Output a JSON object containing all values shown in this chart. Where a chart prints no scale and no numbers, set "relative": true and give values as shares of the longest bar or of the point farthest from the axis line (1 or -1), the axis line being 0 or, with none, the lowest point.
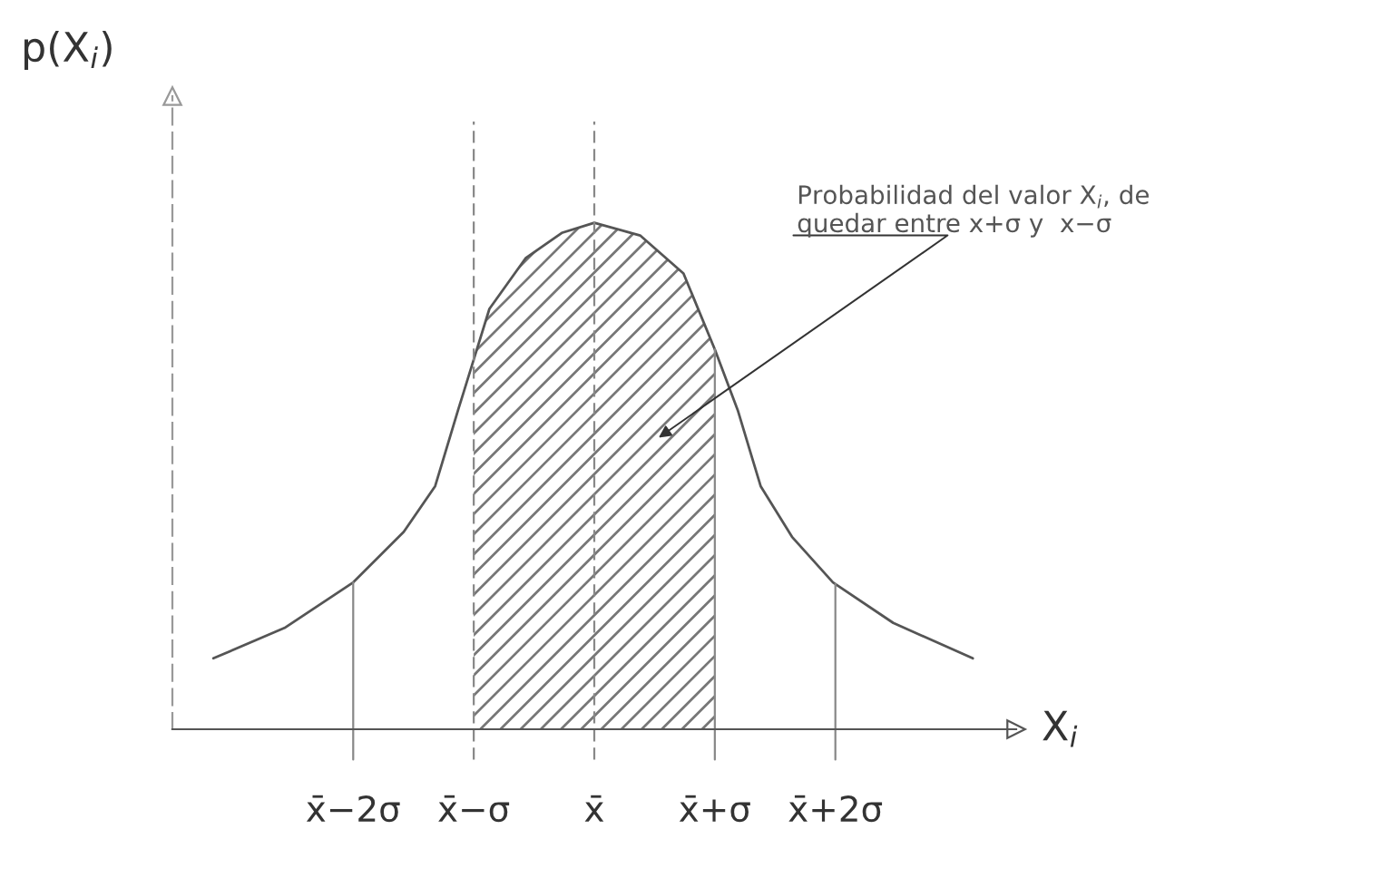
{
  "chart_data": {
    "type": "line",
    "relative": true,
    "ylabel": "p(X$_{i}$)",
    "xlabel": "X$_{i}$",
    "x": [
      -3.16,
      -2.57,
      -2.0,
      -1.58,
      -1.32,
      -1.13,
      -1.0,
      -0.87,
      -0.57,
      -0.27,
      0,
      0.38,
      0.74,
      1.0,
      1.19,
      1.38,
      1.64,
      1.98,
      2.48,
      3.14
    ],
    "series": [
      {
        "color": "#555555",
        "values": [
          0.14,
          0.2,
          0.29,
          0.39,
          0.48,
          0.63,
          0.73,
          0.83,
          0.93,
          0.98,
          1.0,
          0.975,
          0.9,
          0.75,
          0.63,
          0.48,
          0.38,
          0.29,
          0.21,
          0.14
        ]
      }
    ],
    "xlim": [
      -3.5,
      3.5
    ],
    "xticks": [
      {
        "value": -2,
        "label": "x̄−2σ"
      },
      {
        "value": -1,
        "label": "x̄−σ"
      },
      {
        "value": 0,
        "label": "x̄"
      },
      {
        "value": 1,
        "label": "x̄+σ"
      },
      {
        "value": 2,
        "label": "x̄+2σ"
      }
    ],
    "ref_lines": [
      {
        "axis": "x",
        "value": -2,
        "line_style": "solid"
      },
      {
        "axis": "x",
        "value": -1,
        "line_style": "dashed"
      },
      {
        "axis": "x",
        "value": 0,
        "line_style": "dashed"
      },
      {
        "axis": "x",
        "value": 1,
        "line_style": "solid"
      },
      {
        "axis": "x",
        "value": 2,
        "line_style": "solid"
      }
    ],
    "bands": [
      {
        "axis": "x",
        "from": -1,
        "to": 1
      }
    ],
    "annotations": [
      "Probabilidad del valor X$_{i}$, de\nquedar entre x+σ y  x−σ"
    ],
    "grid": false,
    "legend": false
  }
}
